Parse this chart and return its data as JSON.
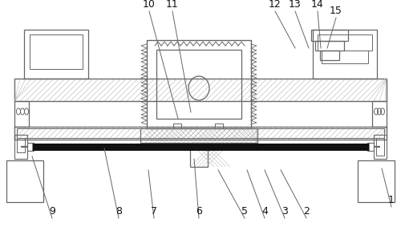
{
  "bg_color": "#ffffff",
  "lc": "#666666",
  "dk": "#111111",
  "figsize": [
    5.0,
    3.03
  ],
  "dpi": 100,
  "label_fs": 9,
  "labels_info": [
    [
      488,
      258,
      476,
      210,
      "1"
    ],
    [
      382,
      272,
      350,
      212,
      "2"
    ],
    [
      355,
      272,
      330,
      212,
      "3"
    ],
    [
      330,
      272,
      308,
      212,
      "4"
    ],
    [
      305,
      272,
      272,
      212,
      "5"
    ],
    [
      248,
      272,
      242,
      198,
      "6"
    ],
    [
      192,
      272,
      185,
      212,
      "7"
    ],
    [
      148,
      272,
      130,
      185,
      "8"
    ],
    [
      65,
      272,
      40,
      195,
      "9"
    ],
    [
      186,
      14,
      222,
      148,
      "10"
    ],
    [
      215,
      14,
      238,
      140,
      "11"
    ],
    [
      343,
      14,
      368,
      60,
      "12"
    ],
    [
      368,
      14,
      385,
      60,
      "13"
    ],
    [
      396,
      14,
      400,
      60,
      "14"
    ],
    [
      419,
      22,
      408,
      60,
      "15"
    ]
  ]
}
